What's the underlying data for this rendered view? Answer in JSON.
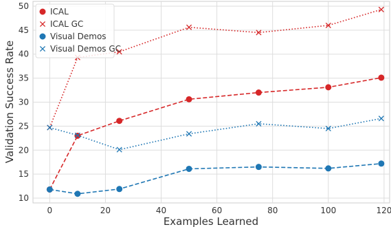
{
  "chart_data": {
    "type": "line",
    "title": "",
    "xlabel": "Examples Learned",
    "ylabel": "Validation Success Rate",
    "xlim": [
      -6,
      122
    ],
    "ylim": [
      9,
      51
    ],
    "xticks": [
      0,
      20,
      40,
      60,
      80,
      100,
      120
    ],
    "yticks": [
      10,
      15,
      20,
      25,
      30,
      35,
      40,
      45,
      50
    ],
    "grid": true,
    "legend_position": "top-left",
    "series": [
      {
        "name": "ICAL",
        "color": "#d62728",
        "marker": "circle",
        "linestyle": "dashed",
        "x": [
          0,
          10,
          25,
          50,
          75,
          100,
          119
        ],
        "y": [
          11.8,
          23.0,
          26.1,
          30.6,
          32.0,
          33.1,
          35.1
        ]
      },
      {
        "name": "ICAL GC",
        "color": "#d62728",
        "marker": "x",
        "linestyle": "dotted",
        "x": [
          0,
          10,
          25,
          50,
          75,
          100,
          119
        ],
        "y": [
          24.7,
          39.3,
          40.5,
          45.6,
          44.5,
          46.0,
          49.3
        ]
      },
      {
        "name": "Visual Demos",
        "color": "#1f77b4",
        "marker": "circle",
        "linestyle": "dashed",
        "x": [
          0,
          10,
          25,
          50,
          75,
          100,
          119
        ],
        "y": [
          11.8,
          10.9,
          11.9,
          16.1,
          16.5,
          16.2,
          17.2
        ]
      },
      {
        "name": "Visual Demos GC",
        "color": "#1f77b4",
        "marker": "x",
        "linestyle": "dotted",
        "x": [
          0,
          10,
          25,
          50,
          75,
          100,
          119
        ],
        "y": [
          24.7,
          23.1,
          20.1,
          23.4,
          25.5,
          24.5,
          26.6
        ]
      }
    ]
  }
}
